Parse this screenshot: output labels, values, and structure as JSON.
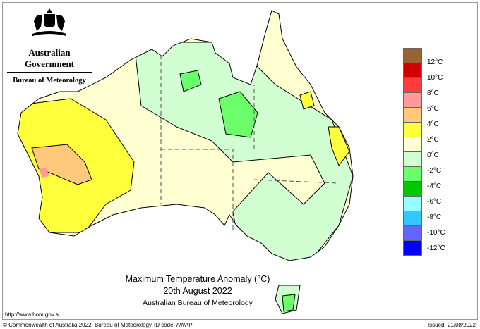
{
  "header": {
    "agency": "Australian Government",
    "bureau": "Bureau of Meteorology"
  },
  "title": {
    "line1": "Maximum Temperature Anomaly (°C)",
    "line2": "20th August 2022",
    "line3": "Australian Bureau of Meteorology"
  },
  "legend": {
    "colors": [
      "#9a6432",
      "#d40000",
      "#ff3c3c",
      "#ff9a9a",
      "#ffc87a",
      "#ffff3c",
      "#ffffd2",
      "#d2ffd2",
      "#6cff6c",
      "#00c800",
      "#96ffff",
      "#32c8ff",
      "#6464ff",
      "#0000ff"
    ],
    "labels": [
      "12°C",
      "10°C",
      "8°C",
      "6°C",
      "4°C",
      "2°C",
      "0°C",
      "-2°C",
      "-4°C",
      "-6°C",
      "-8°C",
      "-10°C",
      "-12°C"
    ]
  },
  "footer": {
    "url": "http://www.bom.gov.au",
    "copyright": "© Commonwealth of Australia 2022, Bureau of Meteorology",
    "id_code": "ID code: AWAP",
    "issued": "Issued: 21/08/2022"
  }
}
